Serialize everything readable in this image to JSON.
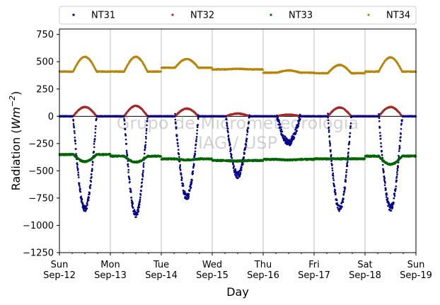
{
  "chart_data": {
    "type": "scatter",
    "xlabel": "Day",
    "ylabel": "Radiation (Wm⁻²)",
    "ylabel_base": "Radiation (",
    "ylabel_unit": "Wm",
    "ylabel_exp": "−2",
    "ylabel_close": ")",
    "ylim": [
      -1250,
      800
    ],
    "xlim": [
      0,
      7
    ],
    "yticks": [
      "750",
      "500",
      "250",
      "0",
      "−250",
      "−500",
      "−750",
      "−1000",
      "−1250"
    ],
    "ytick_values": [
      750,
      500,
      250,
      0,
      -250,
      -500,
      -750,
      -1000,
      -1250
    ],
    "xticks": [
      {
        "day": "Sun",
        "date": "Sep-12"
      },
      {
        "day": "Mon",
        "date": "Sep-13"
      },
      {
        "day": "Tue",
        "date": "Sep-14"
      },
      {
        "day": "Wed",
        "date": "Sep-15"
      },
      {
        "day": "Thu",
        "date": "Sep-16"
      },
      {
        "day": "Fri",
        "date": "Sep-17"
      },
      {
        "day": "Sat",
        "date": "Sep-18"
      },
      {
        "day": "Sun",
        "date": "Sep-19"
      }
    ],
    "grid": "vertical",
    "legend_placement": "top",
    "watermark": [
      "Grupo de Micrometeorologia",
      "IAG / USP"
    ],
    "series": [
      {
        "name": "NT31",
        "color": "#00008b",
        "night_level": 0,
        "day_minimum": [
          -850,
          -900,
          -740,
          -540,
          -240,
          -850,
          -840
        ]
      },
      {
        "name": "NT32",
        "color": "#a52a2a",
        "night_level": 0,
        "day_peak": [
          85,
          95,
          70,
          25,
          15,
          80,
          85
        ]
      },
      {
        "name": "NT33",
        "color": "#006400",
        "daily_night_level": [
          -350,
          -365,
          -390,
          -405,
          -395,
          -390,
          -365
        ],
        "daily_day_level": [
          -415,
          -420,
          -400,
          -410,
          -400,
          -390,
          -440
        ]
      },
      {
        "name": "NT34",
        "color": "#b8860b",
        "daily_night_level": [
          410,
          410,
          445,
          430,
          400,
          395,
          410
        ],
        "day_peak": [
          545,
          545,
          525,
          435,
          420,
          470,
          540
        ]
      }
    ]
  }
}
